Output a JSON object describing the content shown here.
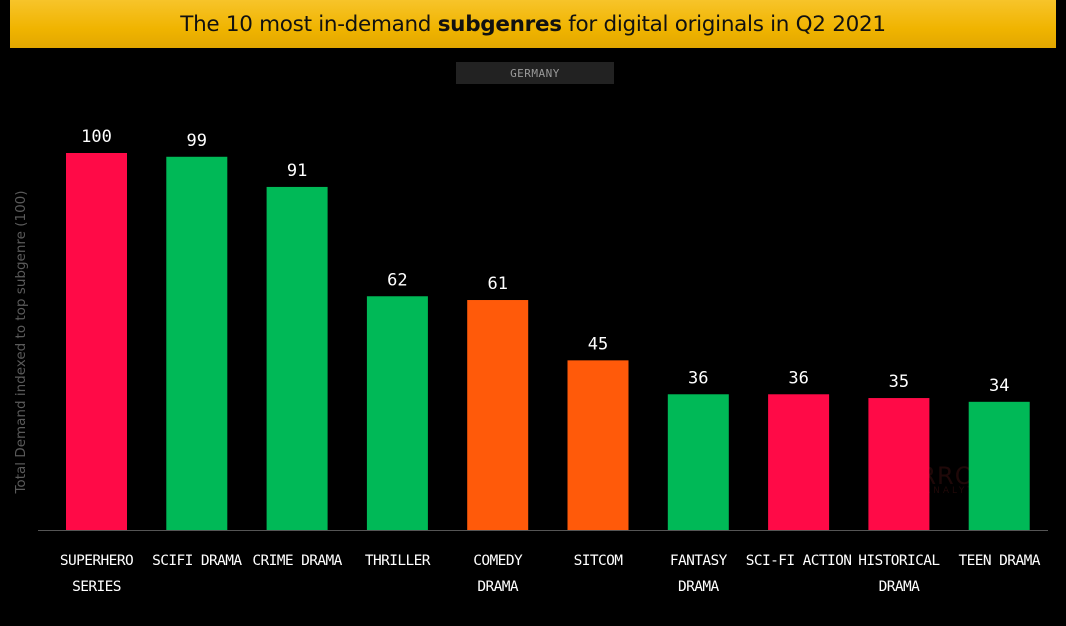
{
  "header": {
    "title_prefix": "The 10 most in-demand ",
    "title_emphasis": "subgenres",
    "title_suffix": " for digital originals in Q2 2021"
  },
  "filter_badge": "GERMANY",
  "watermark": {
    "text": "PARROT",
    "subtext": "ANALYTICS"
  },
  "colors": {
    "background": "#000000",
    "title_bar": "#f0b400",
    "red": "#ff0a47",
    "green": "#00b957",
    "orange": "#ff5a0a",
    "label_text": "#ffffff",
    "axis": "#555555"
  },
  "chart_data": {
    "type": "bar",
    "title": "The 10 most in-demand subgenres for digital originals in Q2 2021",
    "ylabel": "Total Demand indexed to top subgenre (100)",
    "xlabel": "",
    "ylim": [
      0,
      100
    ],
    "grid": false,
    "legend": "none",
    "categories": [
      [
        "SUPERHERO",
        "SERIES"
      ],
      [
        "SCIFI DRAMA"
      ],
      [
        "CRIME DRAMA"
      ],
      [
        "THRILLER"
      ],
      [
        "COMEDY",
        "DRAMA"
      ],
      [
        "SITCOM"
      ],
      [
        "FANTASY",
        "DRAMA"
      ],
      [
        "SCI-FI ACTION"
      ],
      [
        "HISTORICAL",
        "DRAMA"
      ],
      [
        "TEEN DRAMA"
      ]
    ],
    "values": [
      100,
      99,
      91,
      62,
      61,
      45,
      36,
      36,
      35,
      34
    ],
    "bar_colors": [
      "red",
      "green",
      "green",
      "green",
      "orange",
      "orange",
      "green",
      "red",
      "red",
      "green"
    ]
  }
}
